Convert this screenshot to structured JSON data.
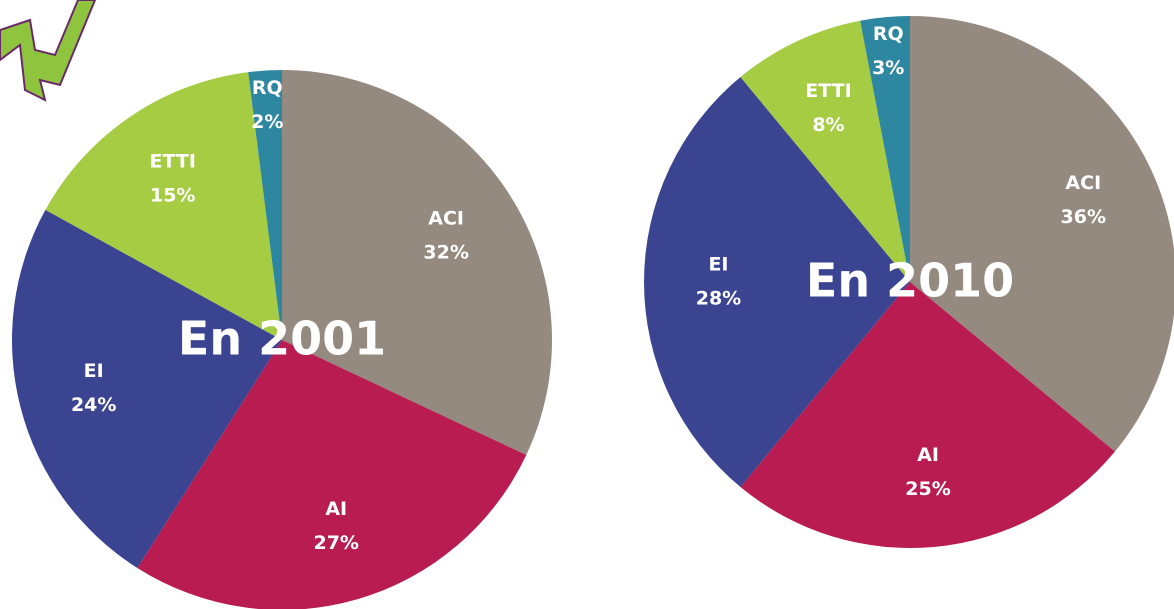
{
  "chart_data": [
    {
      "type": "pie",
      "title": "En 2001",
      "categories": [
        "ACI",
        "AI",
        "EI",
        "ETTI",
        "RQ"
      ],
      "values": [
        32,
        27,
        24,
        15,
        2
      ],
      "value_labels": [
        "32%",
        "27%",
        "24%",
        "15%",
        "2%"
      ],
      "colors": [
        "#948a80",
        "#b81c50",
        "#3b4491",
        "#a5cc43",
        "#2e87a0"
      ]
    },
    {
      "type": "pie",
      "title": "En 2010",
      "categories": [
        "ACI",
        "AI",
        "EI",
        "ETTI",
        "RQ"
      ],
      "values": [
        36,
        25,
        28,
        8,
        3
      ],
      "value_labels": [
        "36%",
        "25%",
        "28%",
        "8%",
        "3%"
      ],
      "colors": [
        "#948a80",
        "#b81c50",
        "#3b4491",
        "#a5cc43",
        "#2e87a0"
      ]
    }
  ]
}
